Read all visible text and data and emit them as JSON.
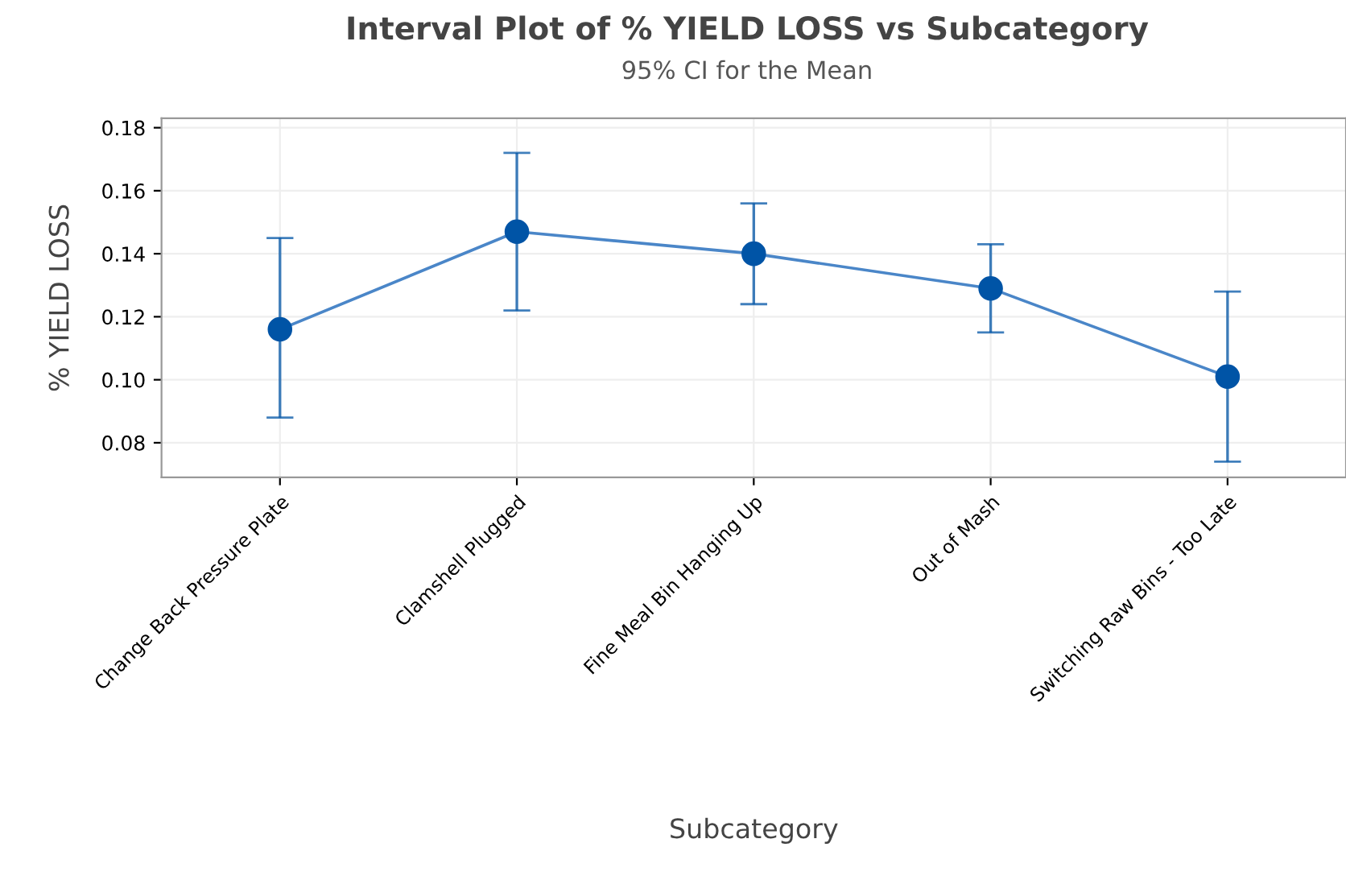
{
  "chart_data": {
    "type": "line",
    "title": "Interval Plot of % YIELD LOSS vs Subcategory",
    "subtitle": "95% CI for the Mean",
    "xlabel": "Subcategory",
    "ylabel": "% YIELD LOSS",
    "categories": [
      "Change Back Pressure Plate",
      "Clamshell Plugged",
      "Fine Meal Bin Hanging Up",
      "Out of Mash",
      "Switching Raw Bins - Too Late"
    ],
    "series": [
      {
        "color": "#0054a6",
        "values": [
          0.116,
          0.147,
          0.14,
          0.129,
          0.101
        ],
        "errors": [
          [
            0.088,
            0.145
          ],
          [
            0.122,
            0.172
          ],
          [
            0.124,
            0.156
          ],
          [
            0.115,
            0.143
          ],
          [
            0.074,
            0.128
          ]
        ]
      }
    ],
    "ylim": [
      0.069,
      0.183
    ],
    "yticks": [
      {
        "value": 0.08,
        "label": "0.08"
      },
      {
        "value": 0.1,
        "label": "0.10"
      },
      {
        "value": 0.12,
        "label": "0.12"
      },
      {
        "value": 0.14,
        "label": "0.14"
      },
      {
        "value": 0.16,
        "label": "0.16"
      },
      {
        "value": 0.18,
        "label": "0.18"
      }
    ],
    "grid": true,
    "marker": "circle",
    "line_style": "solid"
  }
}
